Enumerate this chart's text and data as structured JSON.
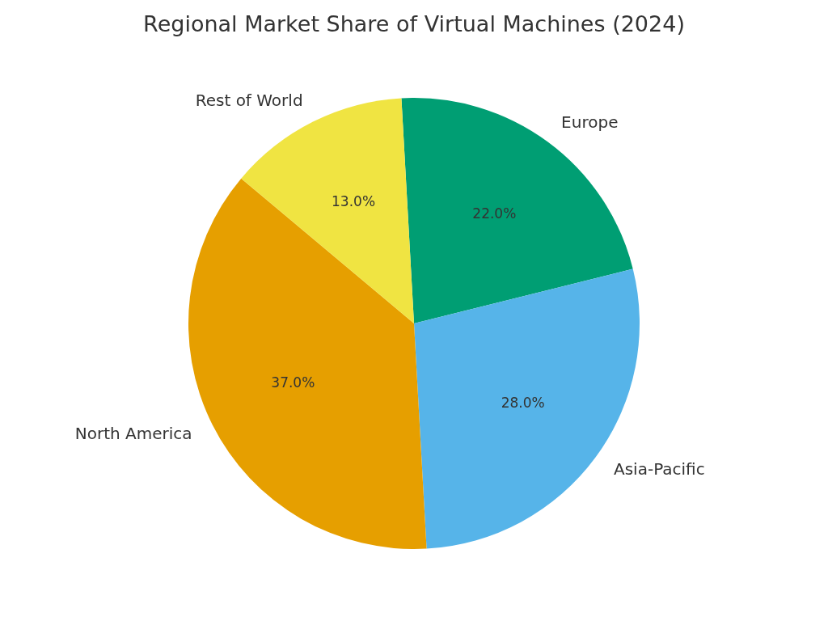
{
  "chart_data": {
    "type": "pie",
    "title": "Regional Market Share of Virtual Machines (2024)",
    "categories": [
      "Europe",
      "Asia-Pacific",
      "North America",
      "Rest of World"
    ],
    "values": [
      22,
      28,
      37,
      13
    ],
    "colors": [
      "#009e73",
      "#56b4e9",
      "#e69f00",
      "#f0e442"
    ],
    "value_labels": [
      "22.0%",
      "28.0%",
      "37.0%",
      "13.0%"
    ]
  }
}
